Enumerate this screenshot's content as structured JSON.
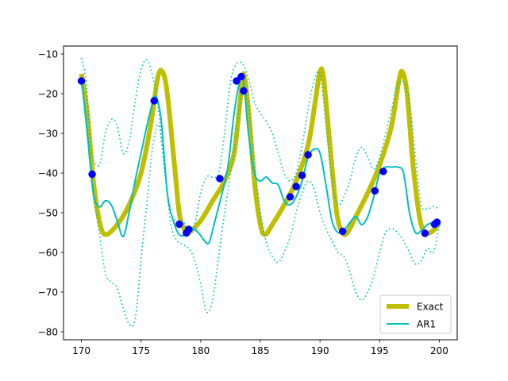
{
  "chart_data": {
    "type": "line",
    "xlim": [
      168.5,
      201.5
    ],
    "ylim": [
      -82,
      -8
    ],
    "xticks": [
      170,
      175,
      180,
      185,
      190,
      195,
      200
    ],
    "yticks": [
      -80,
      -70,
      -60,
      -50,
      -40,
      -30,
      -20,
      -10
    ],
    "grid": false,
    "legend_position": "lower-right",
    "series": [
      {
        "name": "Exact",
        "color": "#bfbf00",
        "style": "thick-solid",
        "x": [
          170.0,
          170.5,
          171.0,
          171.5,
          172.0,
          173.0,
          174.0,
          175.0,
          175.8,
          176.4,
          176.8,
          177.2,
          177.8,
          178.2,
          178.6,
          179.0,
          180.0,
          181.0,
          182.0,
          182.8,
          183.3,
          183.6,
          184.0,
          184.5,
          185.0,
          185.4,
          186.0,
          187.0,
          188.0,
          189.0,
          189.6,
          190.0,
          190.3,
          190.8,
          191.4,
          191.9,
          192.3,
          193.0,
          194.0,
          195.0,
          196.0,
          196.6,
          196.9,
          197.3,
          197.8,
          198.4,
          198.9,
          199.5,
          200.0
        ],
        "y": [
          -15,
          -25,
          -42,
          -52,
          -55.5,
          -53,
          -48,
          -40,
          -28,
          -16,
          -14.5,
          -20,
          -38,
          -50,
          -54,
          -55,
          -52,
          -47,
          -42,
          -35,
          -22,
          -15,
          -24,
          -42,
          -53,
          -55.5,
          -53,
          -48,
          -42,
          -33,
          -22,
          -14.5,
          -16,
          -32,
          -50,
          -55,
          -55,
          -51,
          -45,
          -38,
          -28,
          -17,
          -14.5,
          -20,
          -38,
          -52,
          -55,
          -54.5,
          -52.5
        ]
      },
      {
        "name": "AR1",
        "color": "#00bfbf",
        "style": "solid",
        "x": [
          170.0,
          170.5,
          171.0,
          171.5,
          172.0,
          172.5,
          173.0,
          173.5,
          174.0,
          174.5,
          175.0,
          175.5,
          176.0,
          176.3,
          176.7,
          177.2,
          177.7,
          178.2,
          178.8,
          179.3,
          179.8,
          180.3,
          180.7,
          181.2,
          181.8,
          182.3,
          182.8,
          183.3,
          183.6,
          184.0,
          184.5,
          185.0,
          185.5,
          186.0,
          186.5,
          187.0,
          187.5,
          188.0,
          188.5,
          189.0,
          189.5,
          190.0,
          190.5,
          191.0,
          191.5,
          192.0,
          192.5,
          193.0,
          193.5,
          194.0,
          194.5,
          195.0,
          195.5,
          196.0,
          196.5,
          197.0,
          197.5,
          198.0,
          198.5,
          199.0,
          199.5,
          200.0
        ],
        "y": [
          -16,
          -30,
          -45,
          -48.5,
          -47,
          -48,
          -52,
          -56,
          -50,
          -42,
          -35,
          -28,
          -22,
          -21,
          -27,
          -45,
          -52,
          -55.5,
          -55.5,
          -54,
          -55,
          -57,
          -57.5,
          -52,
          -45,
          -38,
          -25,
          -16.5,
          -17,
          -30,
          -40,
          -42,
          -41,
          -42.5,
          -43,
          -47,
          -48,
          -46,
          -42,
          -36,
          -34,
          -35,
          -43,
          -52,
          -55,
          -54.5,
          -52.5,
          -51,
          -53,
          -51,
          -46,
          -40,
          -38.5,
          -38.5,
          -38.5,
          -40,
          -50,
          -55,
          -54.5,
          -53,
          -52.5,
          -52
        ]
      }
    ],
    "bands": [
      {
        "color": "#00bfbf",
        "style": "dotted",
        "upper": {
          "x": [
            170.0,
            170.4,
            170.8,
            171.5,
            172.0,
            172.5,
            173.0,
            173.5,
            174.0,
            174.5,
            175.0,
            175.5,
            176.0,
            176.5,
            177.0,
            177.5,
            178.0,
            178.5,
            179.0,
            179.5,
            180.0,
            180.5,
            181.0,
            181.5,
            182.0,
            182.5,
            183.0,
            183.5,
            184.0,
            184.5,
            185.0,
            185.5,
            186.0,
            186.5,
            187.0,
            187.5,
            188.0,
            188.5,
            189.0,
            189.5,
            190.0,
            190.5,
            191.0,
            191.5,
            192.0,
            192.5,
            193.0,
            193.5,
            194.0,
            194.5,
            195.0,
            195.5,
            196.0,
            196.5,
            197.0,
            197.5,
            198.0,
            198.5,
            199.0,
            199.5,
            200.0
          ],
          "y": [
            -11,
            -17,
            -34,
            -38,
            -30,
            -26.5,
            -28,
            -35,
            -32,
            -22,
            -14,
            -11.5,
            -16,
            -25,
            -40,
            -50,
            -52,
            -52,
            -55,
            -53,
            -45,
            -41,
            -41,
            -40,
            -30,
            -17,
            -12.5,
            -12.5,
            -16,
            -22,
            -25,
            -27,
            -30,
            -35,
            -40,
            -42,
            -40,
            -33,
            -24,
            -17,
            -15,
            -28,
            -42,
            -48,
            -46,
            -42,
            -36,
            -33.5,
            -36,
            -39,
            -36,
            -30,
            -24,
            -18,
            -17,
            -22,
            -36,
            -48,
            -49,
            -48.5,
            -49
          ]
        },
        "lower": {
          "x": [
            170.0,
            170.4,
            170.8,
            171.5,
            172.0,
            172.5,
            173.0,
            173.5,
            174.0,
            174.5,
            175.0,
            175.5,
            176.0,
            176.5,
            177.0,
            177.5,
            178.0,
            178.5,
            179.0,
            179.5,
            180.0,
            180.5,
            181.0,
            181.5,
            182.0,
            182.5,
            183.0,
            183.5,
            184.0,
            184.5,
            185.0,
            185.5,
            186.0,
            186.5,
            187.0,
            187.5,
            188.0,
            188.5,
            189.0,
            189.5,
            190.0,
            190.5,
            191.0,
            191.5,
            192.0,
            192.5,
            193.0,
            193.5,
            194.0,
            194.5,
            195.0,
            195.5,
            196.0,
            196.5,
            197.0,
            197.5,
            198.0,
            198.5,
            199.0,
            199.5,
            200.0
          ],
          "y": [
            -16,
            -28,
            -40,
            -55,
            -65,
            -67.5,
            -69,
            -74,
            -78,
            -77,
            -62,
            -47,
            -33,
            -28,
            -40,
            -53,
            -57,
            -58,
            -59,
            -62,
            -68,
            -75,
            -72,
            -61,
            -50,
            -40,
            -30,
            -19,
            -23,
            -37,
            -50,
            -57.5,
            -61,
            -62.5,
            -60,
            -56,
            -50,
            -45,
            -42,
            -44,
            -50,
            -54,
            -57,
            -60,
            -61,
            -65,
            -70,
            -72,
            -70,
            -66,
            -60,
            -55,
            -54,
            -55,
            -57,
            -60,
            -63,
            -62,
            -59,
            -60,
            -53
          ]
        }
      }
    ],
    "markers": {
      "color": "#0000ff",
      "points": [
        {
          "x": 170.0,
          "y": -16.8
        },
        {
          "x": 170.9,
          "y": -40.3
        },
        {
          "x": 176.1,
          "y": -21.8
        },
        {
          "x": 178.2,
          "y": -52.9
        },
        {
          "x": 178.8,
          "y": -55.1
        },
        {
          "x": 179.0,
          "y": -54.2
        },
        {
          "x": 181.6,
          "y": -41.4
        },
        {
          "x": 183.0,
          "y": -16.8
        },
        {
          "x": 183.4,
          "y": -15.7
        },
        {
          "x": 183.6,
          "y": -19.3
        },
        {
          "x": 187.5,
          "y": -46.0
        },
        {
          "x": 188.0,
          "y": -43.4
        },
        {
          "x": 188.5,
          "y": -40.6
        },
        {
          "x": 189.0,
          "y": -35.4
        },
        {
          "x": 191.9,
          "y": -54.7
        },
        {
          "x": 194.6,
          "y": -44.5
        },
        {
          "x": 195.3,
          "y": -39.6
        },
        {
          "x": 198.8,
          "y": -55.2
        },
        {
          "x": 199.6,
          "y": -52.9
        },
        {
          "x": 199.8,
          "y": -52.4
        }
      ]
    },
    "legend": [
      {
        "label": "Exact",
        "color": "#bfbf00",
        "style": "thick-solid"
      },
      {
        "label": "AR1",
        "color": "#00bfbf",
        "style": "solid"
      }
    ]
  }
}
